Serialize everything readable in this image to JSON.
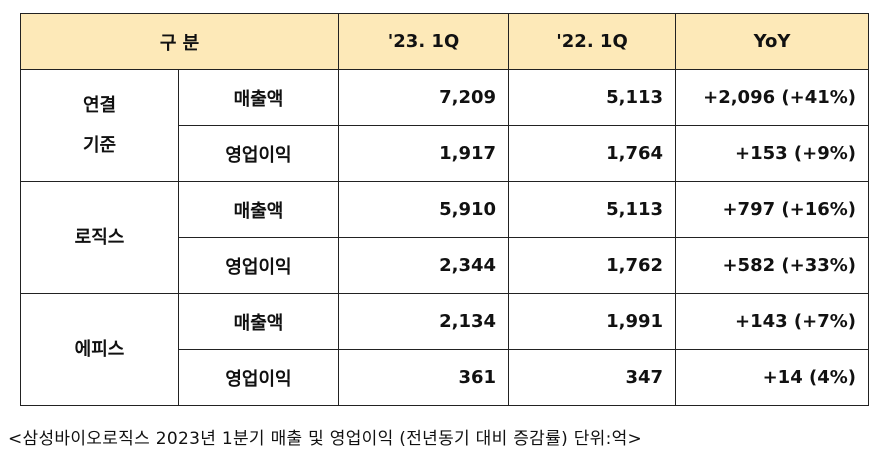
{
  "table": {
    "header": [
      "구 분",
      "'23. 1Q",
      "'22. 1Q",
      "YoY"
    ],
    "groups": [
      {
        "label": [
          "연결",
          "기준"
        ],
        "rows": [
          [
            "매출액",
            "7,209",
            "5,113",
            "+2,096 (+41%)"
          ],
          [
            "영업이익",
            "1,917",
            "1,764",
            "+153 (+9%)"
          ]
        ]
      },
      {
        "label": [
          "로직스"
        ],
        "rows": [
          [
            "매출액",
            "5,910",
            "5,113",
            "+797 (+16%)"
          ],
          [
            "영업이익",
            "2,344",
            "1,762",
            "+582 (+33%)"
          ]
        ]
      },
      {
        "label": [
          "에피스"
        ],
        "rows": [
          [
            "매출액",
            "2,134",
            "1,991",
            "+143 (+7%)"
          ],
          [
            "영업이익",
            "361",
            "347",
            "+14 (4%)"
          ]
        ]
      }
    ]
  },
  "caption": "<삼성바이오로직스 2023년 1분기 매출 및 영업이익 (전년동기 대비 증감률) 단위:억>"
}
